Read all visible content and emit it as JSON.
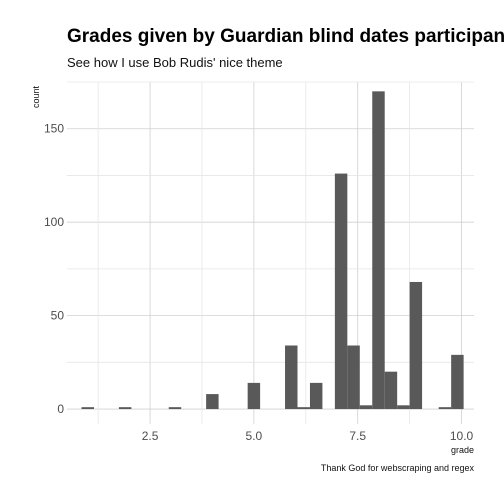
{
  "chart_data": {
    "type": "bar",
    "title": "Grades given by Guardian blind dates participants",
    "subtitle": "See how I use Bob Rudis' nice theme",
    "caption": "Thank God for webscraping and regex",
    "xlabel": "grade",
    "ylabel": "count",
    "xlim": [
      0.5,
      10.3
    ],
    "ylim": [
      -8,
      175
    ],
    "x_ticks": [
      2.5,
      5.0,
      7.5,
      10.0
    ],
    "x_tick_labels": [
      "2.5",
      "5.0",
      "7.5",
      "10.0"
    ],
    "y_ticks": [
      0,
      50,
      100,
      150
    ],
    "y_tick_labels": [
      "0",
      "50",
      "100",
      "150"
    ],
    "grid": true,
    "bin_width": 0.3,
    "bars": [
      {
        "x": 1.0,
        "count": 1
      },
      {
        "x": 1.9,
        "count": 1
      },
      {
        "x": 3.1,
        "count": 1
      },
      {
        "x": 4.0,
        "count": 8
      },
      {
        "x": 5.0,
        "count": 14
      },
      {
        "x": 5.9,
        "count": 34
      },
      {
        "x": 6.2,
        "count": 1
      },
      {
        "x": 6.5,
        "count": 14
      },
      {
        "x": 7.1,
        "count": 126
      },
      {
        "x": 7.4,
        "count": 34
      },
      {
        "x": 7.7,
        "count": 2
      },
      {
        "x": 8.0,
        "count": 170
      },
      {
        "x": 8.3,
        "count": 20
      },
      {
        "x": 8.6,
        "count": 2
      },
      {
        "x": 8.9,
        "count": 68
      },
      {
        "x": 9.6,
        "count": 1
      },
      {
        "x": 9.9,
        "count": 29
      }
    ],
    "bar_color": "#595959",
    "grid_color": "#d0d0d0"
  }
}
